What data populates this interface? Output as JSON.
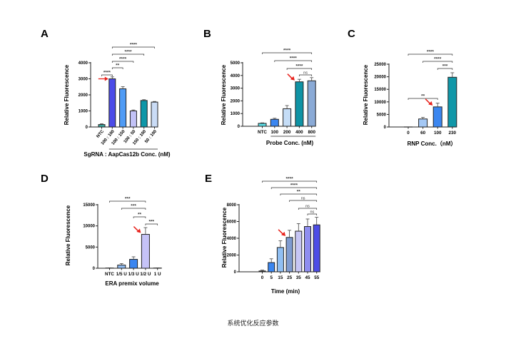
{
  "caption": "系统优化反应参数",
  "chart_data": [
    {
      "panel": "A",
      "type": "bar",
      "ylabel": "Relative  Fluorescence",
      "xlabel": "SgRNA : AapCas12b Conc. (nM)",
      "categories": [
        "NTC",
        "100 : 100",
        "100 : 150",
        "100 : 50",
        "150 : 100",
        "50 : 100"
      ],
      "values": [
        150,
        3000,
        2380,
        1000,
        1650,
        1550
      ],
      "errors": [
        50,
        120,
        130,
        60,
        50,
        40
      ],
      "colors": [
        "#3aa8a0",
        "#4b4be8",
        "#4f9bf5",
        "#c2c2f6",
        "#0f97a8",
        "#cadcf6"
      ],
      "ylim": [
        0,
        4000
      ],
      "yticks": [
        0,
        1000,
        2000,
        3000,
        4000
      ],
      "significance": [
        {
          "from": 0,
          "to": 1,
          "label": "****"
        },
        {
          "from": 1,
          "to": 2,
          "label": "**"
        },
        {
          "from": 1,
          "to": 3,
          "label": "****"
        },
        {
          "from": 1,
          "to": 4,
          "label": "****"
        },
        {
          "from": 1,
          "to": 5,
          "label": "****"
        }
      ],
      "arrow_index": 1
    },
    {
      "panel": "B",
      "type": "bar",
      "ylabel": "Relative  Fluorescence",
      "xlabel": "Probe Conc. (nM)",
      "categories": [
        "NTC",
        "100",
        "200",
        "400",
        "800"
      ],
      "values": [
        230,
        550,
        1380,
        3500,
        3580
      ],
      "errors": [
        40,
        80,
        250,
        200,
        250
      ],
      "colors": [
        "#5de0e8",
        "#3b86f0",
        "#c5ddf7",
        "#0f93a5",
        "#8aaad6"
      ],
      "ylim": [
        0,
        5000
      ],
      "yticks": [
        0,
        1000,
        2000,
        3000,
        4000,
        5000
      ],
      "significance": [
        {
          "from": 0,
          "to": 4,
          "label": "****"
        },
        {
          "from": 1,
          "to": 4,
          "label": "****"
        },
        {
          "from": 2,
          "to": 4,
          "label": "****"
        },
        {
          "from": 3,
          "to": 4,
          "label": "ns"
        }
      ],
      "arrow_index": 3
    },
    {
      "panel": "C",
      "type": "bar",
      "ylabel": "Relative  Fluorescence",
      "xlabel": "RNP Conc.（nM）",
      "categories": [
        "0",
        "60",
        "100",
        "230"
      ],
      "values": [
        0,
        3200,
        8000,
        19800
      ],
      "errors": [
        0,
        600,
        1500,
        1800
      ],
      "colors": [
        "#cccccc",
        "#a4c8f5",
        "#3b86f0",
        "#1097a8"
      ],
      "ylim": [
        0,
        25000
      ],
      "yticks": [
        0,
        5000,
        10000,
        15000,
        20000,
        25000
      ],
      "significance": [
        {
          "from": 0,
          "to": 3,
          "label": "****"
        },
        {
          "from": 1,
          "to": 3,
          "label": "****"
        },
        {
          "from": 2,
          "to": 3,
          "label": "***"
        },
        {
          "from": 0,
          "to": 2,
          "label": "**"
        }
      ],
      "arrow_index": 2
    },
    {
      "panel": "D",
      "type": "bar",
      "ylabel": "Relative  Fluorescence",
      "xlabel": "ERA premix volume",
      "categories": [
        "NTC",
        "1/5 U",
        "1/3 U",
        "1/2 U",
        "1 U"
      ],
      "values": [
        50,
        750,
        2100,
        8000,
        50
      ],
      "errors": [
        50,
        350,
        600,
        1600,
        50
      ],
      "colors": [
        "#999999",
        "#8fbaf0",
        "#3b86f0",
        "#c6c3f7",
        "#999999"
      ],
      "ylim": [
        0,
        15000
      ],
      "yticks": [
        0,
        5000,
        10000,
        15000
      ],
      "significance": [
        {
          "from": 0,
          "to": 3,
          "label": "***"
        },
        {
          "from": 1,
          "to": 3,
          "label": "***"
        },
        {
          "from": 2,
          "to": 3,
          "label": "**"
        },
        {
          "from": 3,
          "to": 4,
          "label": "***"
        }
      ],
      "arrow_index": 3
    },
    {
      "panel": "E",
      "type": "bar",
      "ylabel": "Relative  Fluorescence",
      "xlabel": "Time (min)",
      "categories": [
        "0",
        "5",
        "15",
        "25",
        "35",
        "45",
        "55"
      ],
      "values": [
        100,
        1100,
        2900,
        4100,
        4850,
        5400,
        5600
      ],
      "errors": [
        100,
        450,
        800,
        850,
        900,
        900,
        900
      ],
      "colors": [
        "#555555",
        "#3b86f0",
        "#90bff3",
        "#7f9bd0",
        "#c7c6f5",
        "#8f8ef0",
        "#4c4ce6"
      ],
      "ylim": [
        0,
        8000
      ],
      "yticks": [
        0,
        2000,
        4000,
        6000,
        8000
      ],
      "significance": [
        {
          "from": 0,
          "to": 6,
          "label": "****"
        },
        {
          "from": 1,
          "to": 6,
          "label": "****"
        },
        {
          "from": 2,
          "to": 6,
          "label": "**"
        },
        {
          "from": 3,
          "to": 6,
          "label": "ns"
        },
        {
          "from": 4,
          "to": 6,
          "label": "ns"
        },
        {
          "from": 5,
          "to": 6,
          "label": "ns"
        }
      ],
      "arrow_index": 3
    }
  ]
}
